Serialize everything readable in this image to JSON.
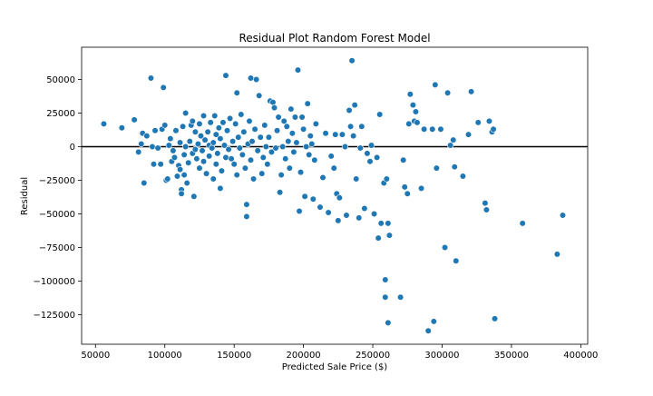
{
  "chart_data": {
    "type": "scatter",
    "title": "Residual Plot Random Forest Model",
    "xlabel": "Predicted Sale Price ($)",
    "ylabel": "Residual",
    "xlim": [
      40000,
      405000
    ],
    "ylim": [
      -147000,
      74000
    ],
    "x_ticks": [
      50000,
      100000,
      150000,
      200000,
      250000,
      300000,
      350000,
      400000
    ],
    "y_ticks": [
      50000,
      25000,
      0,
      -25000,
      -50000,
      -75000,
      -100000,
      -125000
    ],
    "x_tick_labels": [
      "50000",
      "100000",
      "150000",
      "200000",
      "250000",
      "300000",
      "350000",
      "400000"
    ],
    "y_tick_labels": [
      "50000",
      "25000",
      "0",
      "−25000",
      "−50000",
      "−75000",
      "−100000",
      "−125000"
    ],
    "grid": false,
    "reference_line_y": 0,
    "marker_color": "#1f77b4",
    "marker_edge_color": "#ffffff",
    "points": [
      [
        56000,
        17000
      ],
      [
        69000,
        14000
      ],
      [
        78000,
        20000
      ],
      [
        81000,
        -4000
      ],
      [
        83000,
        2000
      ],
      [
        84000,
        10000
      ],
      [
        85000,
        -27000
      ],
      [
        87000,
        8000
      ],
      [
        90000,
        51000
      ],
      [
        91000,
        0
      ],
      [
        92000,
        -13000
      ],
      [
        93000,
        12000
      ],
      [
        95000,
        -1000
      ],
      [
        97000,
        -13000
      ],
      [
        98000,
        13000
      ],
      [
        99000,
        44000
      ],
      [
        100000,
        16000
      ],
      [
        101000,
        -25000
      ],
      [
        102000,
        -24000
      ],
      [
        103000,
        1000
      ],
      [
        104000,
        6000
      ],
      [
        105000,
        -11000
      ],
      [
        106000,
        -3000
      ],
      [
        107000,
        -8000
      ],
      [
        108000,
        12000
      ],
      [
        109000,
        -22000
      ],
      [
        110000,
        -14000
      ],
      [
        111000,
        3000
      ],
      [
        111000,
        -17000
      ],
      [
        112000,
        -32000
      ],
      [
        112000,
        -35000
      ],
      [
        113000,
        15000
      ],
      [
        114000,
        -6000
      ],
      [
        114000,
        -21000
      ],
      [
        115000,
        25000
      ],
      [
        115000,
        0
      ],
      [
        116000,
        -27000
      ],
      [
        117000,
        -12000
      ],
      [
        118000,
        4000
      ],
      [
        119000,
        16000
      ],
      [
        120000,
        -5000
      ],
      [
        120000,
        19000
      ],
      [
        121000,
        -37000
      ],
      [
        122000,
        11000
      ],
      [
        122000,
        -2000
      ],
      [
        123000,
        -9000
      ],
      [
        124000,
        2000
      ],
      [
        125000,
        -16000
      ],
      [
        125000,
        17000
      ],
      [
        126000,
        8000
      ],
      [
        127000,
        -3000
      ],
      [
        128000,
        23000
      ],
      [
        128000,
        -11000
      ],
      [
        129000,
        5000
      ],
      [
        130000,
        -20000
      ],
      [
        131000,
        11000
      ],
      [
        132000,
        1000
      ],
      [
        132000,
        -7000
      ],
      [
        133000,
        18000
      ],
      [
        134000,
        -1000
      ],
      [
        135000,
        3000
      ],
      [
        135000,
        -24000
      ],
      [
        136000,
        23000
      ],
      [
        137000,
        9000
      ],
      [
        137000,
        -13000
      ],
      [
        138000,
        -5000
      ],
      [
        139000,
        14000
      ],
      [
        140000,
        -31000
      ],
      [
        140000,
        6000
      ],
      [
        141000,
        -18000
      ],
      [
        142000,
        18000
      ],
      [
        143000,
        1000
      ],
      [
        144000,
        53000
      ],
      [
        144000,
        -8000
      ],
      [
        145000,
        12000
      ],
      [
        146000,
        -2000
      ],
      [
        147000,
        21000
      ],
      [
        148000,
        -9000
      ],
      [
        149000,
        4000
      ],
      [
        150000,
        -13000
      ],
      [
        151000,
        17000
      ],
      [
        152000,
        40000
      ],
      [
        152000,
        -21000
      ],
      [
        153000,
        7000
      ],
      [
        154000,
        -1000
      ],
      [
        155000,
        24000
      ],
      [
        156000,
        -6000
      ],
      [
        157000,
        11000
      ],
      [
        158000,
        -16000
      ],
      [
        159000,
        -43000
      ],
      [
        159000,
        -52000
      ],
      [
        160000,
        2000
      ],
      [
        161000,
        19000
      ],
      [
        162000,
        51000
      ],
      [
        162000,
        -10000
      ],
      [
        163000,
        4000
      ],
      [
        164000,
        -24000
      ],
      [
        165000,
        13000
      ],
      [
        166000,
        50000
      ],
      [
        167000,
        -3000
      ],
      [
        168000,
        38000
      ],
      [
        169000,
        7000
      ],
      [
        170000,
        -20000
      ],
      [
        171000,
        -8000
      ],
      [
        172000,
        16000
      ],
      [
        173000,
        0
      ],
      [
        174000,
        -13000
      ],
      [
        175000,
        7000
      ],
      [
        176000,
        34000
      ],
      [
        177000,
        -4000
      ],
      [
        178000,
        33000
      ],
      [
        179000,
        29000
      ],
      [
        180000,
        -1000
      ],
      [
        181000,
        12000
      ],
      [
        182000,
        22000
      ],
      [
        183000,
        -34000
      ],
      [
        184000,
        -21000
      ],
      [
        185000,
        0
      ],
      [
        186000,
        19000
      ],
      [
        187000,
        -9000
      ],
      [
        188000,
        15000
      ],
      [
        189000,
        4000
      ],
      [
        190000,
        -16000
      ],
      [
        191000,
        28000
      ],
      [
        192000,
        10000
      ],
      [
        193000,
        -4000
      ],
      [
        194000,
        22000
      ],
      [
        195000,
        3000
      ],
      [
        196000,
        57000
      ],
      [
        197000,
        -48000
      ],
      [
        198000,
        -19000
      ],
      [
        199000,
        22000
      ],
      [
        200000,
        13000
      ],
      [
        201000,
        -37000
      ],
      [
        202000,
        0
      ],
      [
        203000,
        32000
      ],
      [
        204000,
        -6000
      ],
      [
        205000,
        8000
      ],
      [
        206000,
        2000
      ],
      [
        207000,
        -39000
      ],
      [
        208000,
        -10000
      ],
      [
        209000,
        17000
      ],
      [
        212000,
        -45000
      ],
      [
        214000,
        -23000
      ],
      [
        216000,
        10000
      ],
      [
        218000,
        -49000
      ],
      [
        220000,
        -7000
      ],
      [
        222000,
        -16000
      ],
      [
        223000,
        9000
      ],
      [
        224000,
        -35000
      ],
      [
        225000,
        -55000
      ],
      [
        226000,
        -38000
      ],
      [
        228000,
        9000
      ],
      [
        230000,
        0
      ],
      [
        231000,
        -51000
      ],
      [
        233000,
        27000
      ],
      [
        234000,
        15000
      ],
      [
        235000,
        64000
      ],
      [
        236000,
        8000
      ],
      [
        237000,
        31000
      ],
      [
        238000,
        -24000
      ],
      [
        240000,
        -53000
      ],
      [
        241000,
        -1000
      ],
      [
        242000,
        15000
      ],
      [
        244000,
        -46000
      ],
      [
        246000,
        -5000
      ],
      [
        248000,
        -11000
      ],
      [
        249000,
        1000
      ],
      [
        251000,
        -50000
      ],
      [
        253000,
        -8000
      ],
      [
        254000,
        -68000
      ],
      [
        255000,
        24000
      ],
      [
        256000,
        -57000
      ],
      [
        258000,
        -27000
      ],
      [
        259000,
        -99000
      ],
      [
        259000,
        -112000
      ],
      [
        260000,
        -24000
      ],
      [
        261000,
        -57000
      ],
      [
        261000,
        -131000
      ],
      [
        262000,
        -66000
      ],
      [
        270000,
        -112000
      ],
      [
        272000,
        -10000
      ],
      [
        273000,
        -30000
      ],
      [
        275000,
        -35000
      ],
      [
        276000,
        17000
      ],
      [
        277000,
        39000
      ],
      [
        279000,
        31000
      ],
      [
        280000,
        19000
      ],
      [
        281000,
        26000
      ],
      [
        282000,
        18000
      ],
      [
        285000,
        -31000
      ],
      [
        287000,
        13000
      ],
      [
        290000,
        -137000
      ],
      [
        293000,
        13000
      ],
      [
        294000,
        -130000
      ],
      [
        295000,
        46000
      ],
      [
        296000,
        -16000
      ],
      [
        299000,
        13000
      ],
      [
        302000,
        -75000
      ],
      [
        304000,
        40000
      ],
      [
        306000,
        1000
      ],
      [
        308000,
        5000
      ],
      [
        309000,
        -15000
      ],
      [
        310000,
        -85000
      ],
      [
        315000,
        -22000
      ],
      [
        319000,
        9000
      ],
      [
        321000,
        41000
      ],
      [
        326000,
        18000
      ],
      [
        331000,
        -42000
      ],
      [
        332000,
        -47000
      ],
      [
        334000,
        19000
      ],
      [
        336000,
        11000
      ],
      [
        337000,
        13000
      ],
      [
        338000,
        -128000
      ],
      [
        358000,
        -57000
      ],
      [
        383000,
        -80000
      ],
      [
        387000,
        -51000
      ]
    ]
  }
}
